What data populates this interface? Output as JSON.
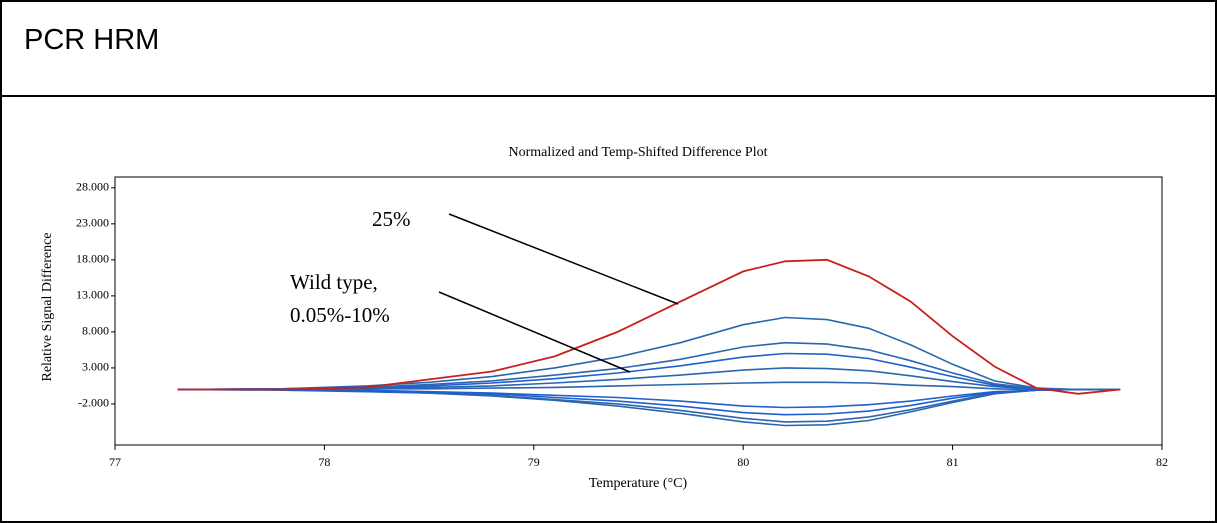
{
  "header": {
    "title": "PCR HRM"
  },
  "chart_data": {
    "type": "line",
    "title": "Normalized and Temp-Shifted Difference Plot",
    "x_label": "Temperature (°C)",
    "y_label": "Relative Signal Difference",
    "annotations": [
      "25%",
      "Wild type,",
      "0.05%-10%"
    ],
    "x": [
      77.3,
      77.8,
      78.2,
      78.5,
      78.8,
      79.1,
      79.4,
      79.7,
      80.0,
      80.2,
      80.4,
      80.6,
      80.8,
      81.0,
      81.2,
      81.4,
      81.6,
      81.8
    ],
    "xlim": [
      77,
      82
    ],
    "xticks": [
      77,
      78,
      79,
      80,
      81,
      82
    ],
    "ylim": [
      -7.7,
      29.5
    ],
    "yticks": [
      {
        "value": 28,
        "label": "28.000"
      },
      {
        "value": 23,
        "label": "23.000"
      },
      {
        "value": 18,
        "label": "18.000"
      },
      {
        "value": 13,
        "label": "13.000"
      },
      {
        "value": 8,
        "label": "8.000"
      },
      {
        "value": 3,
        "label": "3.000"
      },
      {
        "value": -2,
        "label": "-2.000"
      }
    ],
    "series": [
      {
        "color": "#c8201e",
        "values": [
          0,
          0,
          0.3,
          1.4,
          2.5,
          4.6,
          8,
          12.2,
          16.4,
          17.8,
          18,
          15.7,
          12.2,
          7.4,
          3.2,
          0.2,
          -0.6,
          0
        ]
      },
      {
        "color": "#2b66b0",
        "values": [
          0,
          0.1,
          0.5,
          1,
          1.8,
          3,
          4.5,
          6.5,
          9,
          10,
          9.7,
          8.5,
          6.2,
          3.5,
          1.2,
          0.2,
          0,
          0
        ]
      },
      {
        "color": "#2b66b0",
        "values": [
          0,
          0.1,
          0.3,
          0.7,
          1.2,
          2,
          2.9,
          4.2,
          5.9,
          6.5,
          6.3,
          5.5,
          4,
          2.3,
          0.8,
          0.1,
          0,
          0
        ]
      },
      {
        "color": "#1f5fd0",
        "values": [
          0,
          0.1,
          0.3,
          0.5,
          0.9,
          1.5,
          2.3,
          3.3,
          4.5,
          5,
          4.9,
          4.3,
          3.1,
          1.8,
          0.6,
          0.1,
          0,
          0
        ]
      },
      {
        "color": "#2b66b0",
        "values": [
          0,
          0,
          0.2,
          0.3,
          0.5,
          0.9,
          1.4,
          2,
          2.7,
          3,
          2.9,
          2.6,
          1.9,
          1.1,
          0.4,
          0.1,
          0,
          0
        ]
      },
      {
        "color": "#2b66b0",
        "values": [
          0,
          0,
          0.1,
          0.1,
          0.2,
          0.3,
          0.5,
          0.7,
          0.9,
          1,
          1,
          0.9,
          0.6,
          0.4,
          0.1,
          0,
          0,
          0
        ]
      },
      {
        "color": "#1f5fd0",
        "values": [
          0,
          0,
          -0.1,
          -0.3,
          -0.5,
          -0.8,
          -1.1,
          -1.6,
          -2.3,
          -2.5,
          -2.4,
          -2.1,
          -1.6,
          -0.9,
          -0.3,
          -0.1,
          0,
          0
        ]
      },
      {
        "color": "#1f5fd0",
        "values": [
          0,
          0,
          -0.2,
          -0.4,
          -0.6,
          -1.1,
          -1.6,
          -2.3,
          -3.2,
          -3.5,
          -3.4,
          -3,
          -2.2,
          -1.2,
          -0.4,
          -0.1,
          0,
          0
        ]
      },
      {
        "color": "#2b66b0",
        "values": [
          0,
          0,
          -0.2,
          -0.5,
          -0.8,
          -1.4,
          -2,
          -2.9,
          -4,
          -4.5,
          -4.4,
          -3.8,
          -2.8,
          -1.6,
          -0.5,
          -0.1,
          0,
          0
        ]
      },
      {
        "color": "#2b66b0",
        "values": [
          0,
          -0.1,
          -0.3,
          -0.5,
          -0.9,
          -1.5,
          -2.3,
          -3.3,
          -4.5,
          -5,
          -4.9,
          -4.3,
          -3.1,
          -1.8,
          -0.6,
          -0.1,
          0,
          0
        ]
      }
    ]
  }
}
